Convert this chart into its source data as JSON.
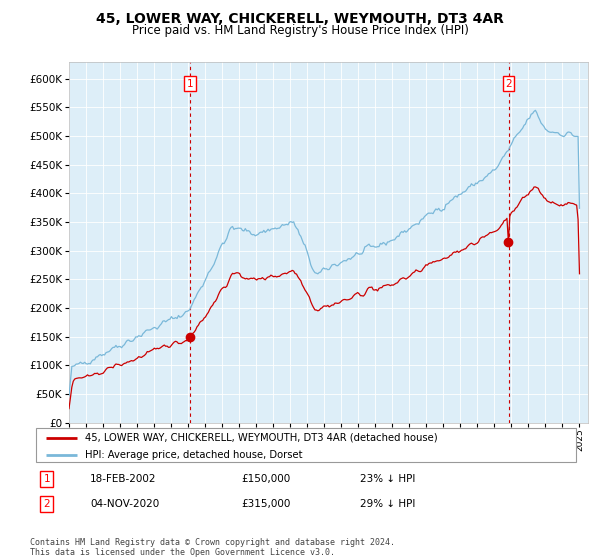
{
  "title": "45, LOWER WAY, CHICKERELL, WEYMOUTH, DT3 4AR",
  "subtitle": "Price paid vs. HM Land Registry's House Price Index (HPI)",
  "title_fontsize": 10,
  "subtitle_fontsize": 8.5,
  "y_ticks": [
    0,
    50000,
    100000,
    150000,
    200000,
    250000,
    300000,
    350000,
    400000,
    450000,
    500000,
    550000,
    600000
  ],
  "hpi_color": "#7ab8d9",
  "price_color": "#cc0000",
  "marker_color": "#cc0000",
  "background_color": "#ddeef8",
  "grid_color": "#ffffff",
  "sale1_year": 2002.12,
  "sale1_date": "18-FEB-2002",
  "sale1_price": 150000,
  "sale1_hpi_pct": "23%",
  "sale2_year": 2020.83,
  "sale2_date": "04-NOV-2020",
  "sale2_price": 315000,
  "sale2_hpi_pct": "29%",
  "legend_line1": "45, LOWER WAY, CHICKERELL, WEYMOUTH, DT3 4AR (detached house)",
  "legend_line2": "HPI: Average price, detached house, Dorset",
  "footer": "Contains HM Land Registry data © Crown copyright and database right 2024.\nThis data is licensed under the Open Government Licence v3.0."
}
